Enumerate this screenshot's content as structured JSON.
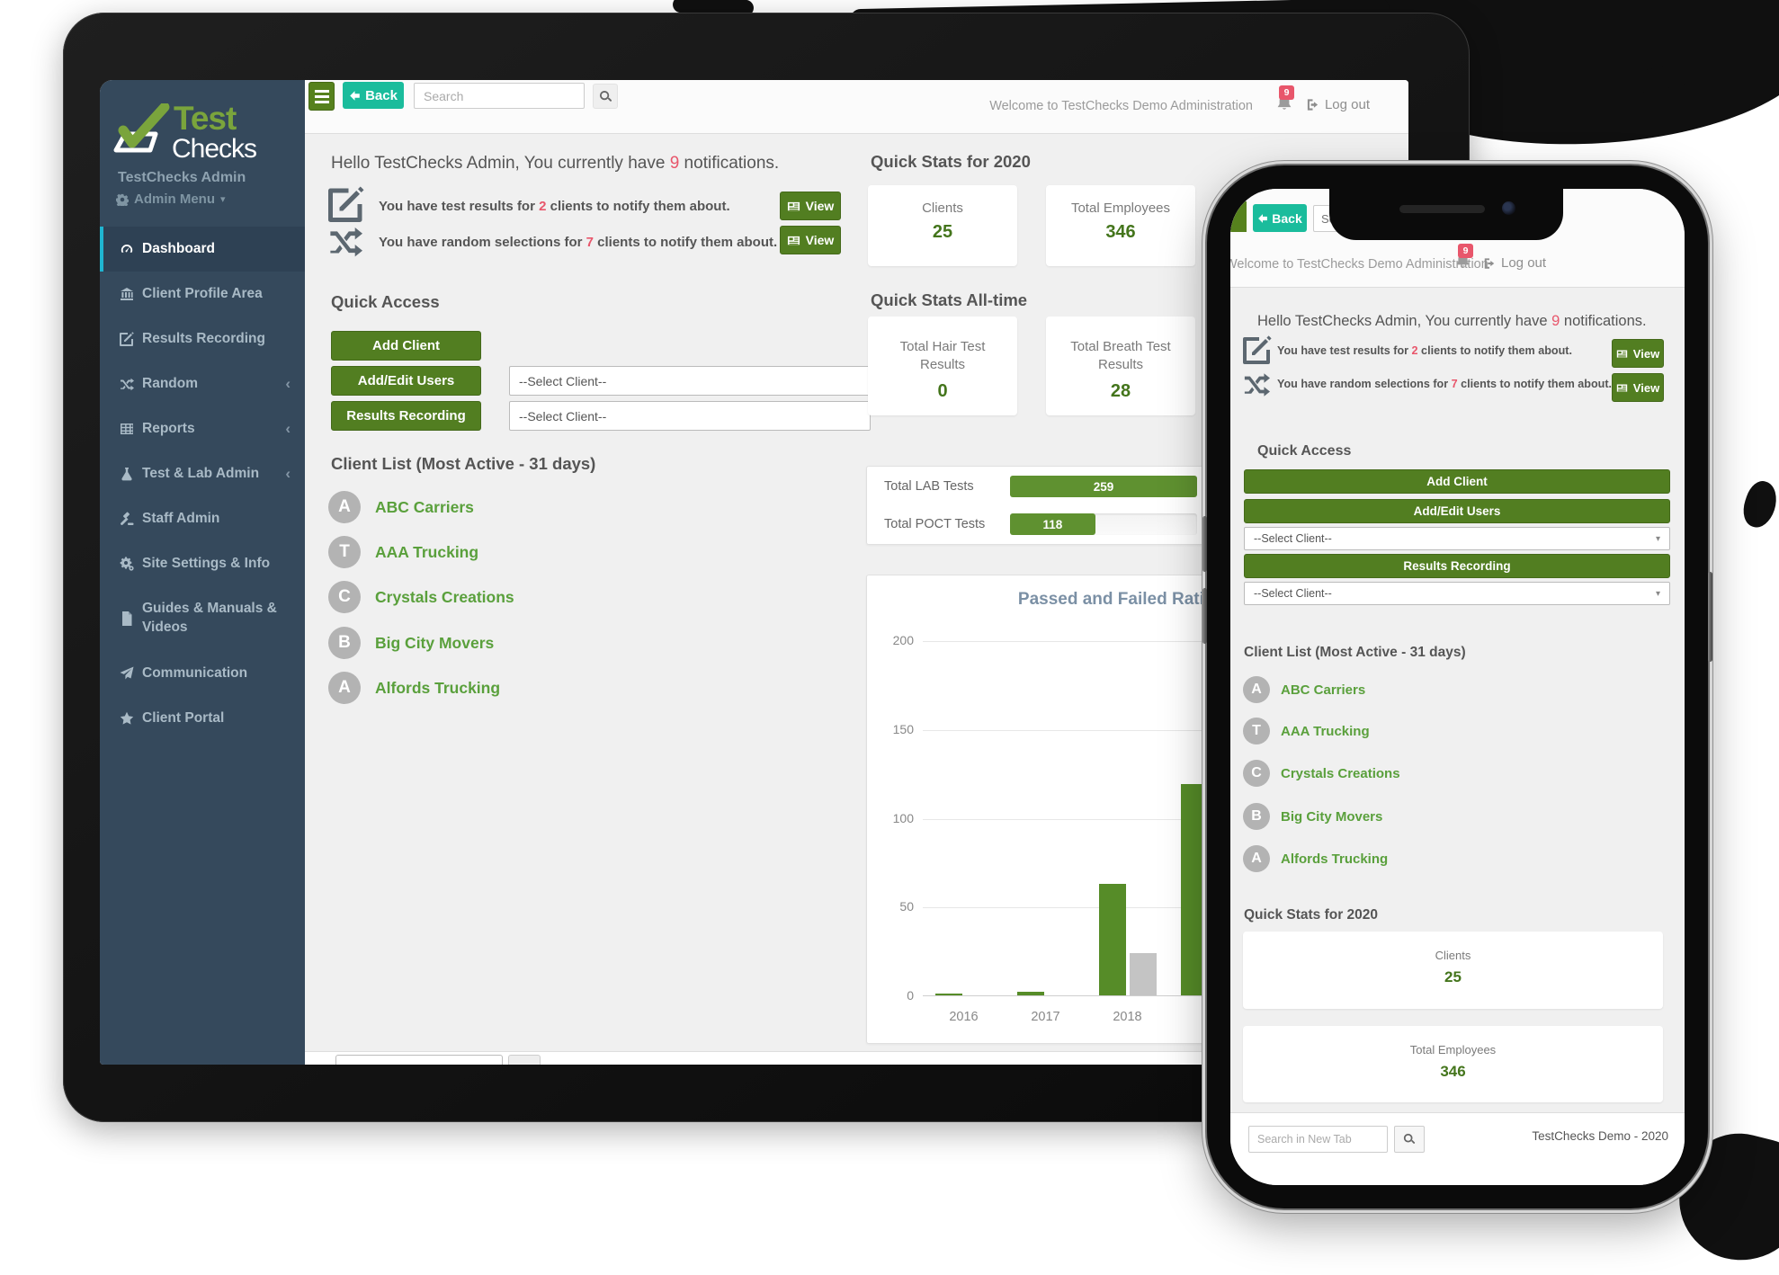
{
  "brand": {
    "logo_top": "Test",
    "logo_bottom": "Checks",
    "account": "TestChecks Admin",
    "menu": "Admin Menu"
  },
  "sidebar": {
    "items": [
      {
        "label": "Dashboard",
        "active": true
      },
      {
        "label": "Client Profile Area"
      },
      {
        "label": "Results Recording"
      },
      {
        "label": "Random",
        "expandable": true
      },
      {
        "label": "Reports",
        "expandable": true
      },
      {
        "label": "Test & Lab Admin",
        "expandable": true
      },
      {
        "label": "Staff Admin"
      },
      {
        "label": "Site Settings & Info"
      },
      {
        "label": "Guides & Manuals & Videos"
      },
      {
        "label": "Communication"
      },
      {
        "label": "Client Portal"
      }
    ]
  },
  "header": {
    "back_label": "Back",
    "search_placeholder": "Search",
    "welcome": "Welcome to TestChecks Demo Administration",
    "notification_count": "9",
    "logout_label": "Log out"
  },
  "greeting": {
    "pre": "Hello TestChecks Admin, You currently have ",
    "count": "9",
    "post": " notifications."
  },
  "notifications": [
    {
      "pre": "You have test results for ",
      "count": "2",
      "post": " clients to notify them about.",
      "action": "View"
    },
    {
      "pre": "You have random selections for ",
      "count": "7",
      "post": " clients to notify them about.",
      "action": "View"
    }
  ],
  "quick_access": {
    "title": "Quick Access",
    "add_client": "Add Client",
    "add_edit_users": "Add/Edit Users",
    "results_recording": "Results Recording",
    "select_placeholder": "--Select Client--"
  },
  "client_list": {
    "title": "Client List (Most Active - 31 days)",
    "clients": [
      {
        "initial": "A",
        "name": "ABC Carriers"
      },
      {
        "initial": "T",
        "name": "AAA Trucking"
      },
      {
        "initial": "C",
        "name": "Crystals Creations"
      },
      {
        "initial": "B",
        "name": "Big City Movers"
      },
      {
        "initial": "A",
        "name": "Alfords Trucking"
      }
    ]
  },
  "quick_stats_2020": {
    "title": "Quick Stats for 2020",
    "cards": [
      {
        "label": "Clients",
        "value": "25"
      },
      {
        "label": "Total Employees",
        "value": "346"
      }
    ]
  },
  "quick_stats_alltime": {
    "title": "Quick Stats All-time",
    "cards": [
      {
        "label": "Total Hair Test Results",
        "value": "0"
      },
      {
        "label": "Total Breath Test Results",
        "value": "28"
      }
    ]
  },
  "test_totals": {
    "rows": [
      {
        "label": "Total LAB Tests",
        "value": "259",
        "pct": 100
      },
      {
        "label": "Total POCT Tests",
        "value": "118",
        "pct": 45.6
      }
    ]
  },
  "chart_data": {
    "type": "bar",
    "title": "Passed and Failed Ratio Y",
    "categories": [
      "2016",
      "2017",
      "2018",
      "",
      ""
    ],
    "series": [
      {
        "name": "Passed",
        "color": "#568c28",
        "values": [
          1,
          2,
          63,
          119,
          null
        ]
      },
      {
        "name": "Failed",
        "color": "#c4c4c4",
        "values": [
          0,
          0,
          24,
          null,
          null
        ]
      }
    ],
    "ylim": [
      0,
      200
    ],
    "yticks": [
      0,
      50,
      100,
      150,
      200
    ],
    "grid": true,
    "legend_visible": false
  },
  "phone": {
    "footer_search_placeholder": "Search in New Tab",
    "footer_brand": "TestChecks Demo - 2020"
  },
  "colors": {
    "accent_green": "#527e21",
    "teal": "#1abc9c",
    "sidebar": "#35495c",
    "sidebar_active": "#2e4154",
    "active_indicator": "#1fb5d1",
    "alert_red": "#e8566b",
    "client_green": "#5aa03c",
    "stat_green": "#44751c",
    "bar_green": "#568c28",
    "bar_gray": "#c4c4c4",
    "chart_title": "#7b90a5"
  }
}
